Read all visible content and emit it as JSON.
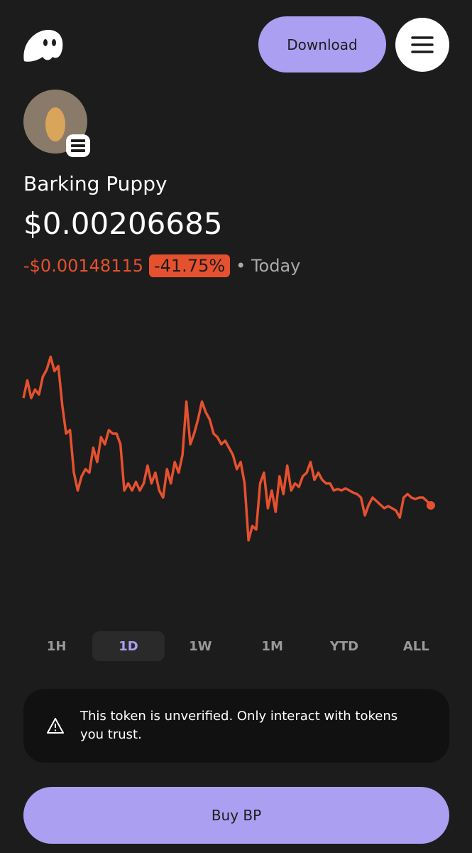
{
  "header": {
    "download": "Download"
  },
  "token": {
    "name": "Barking Puppy",
    "price": "$0.00206685",
    "change": "-$0.00148115",
    "change_percent": "-41.75%",
    "period": "Today"
  },
  "chart_data": {
    "type": "line",
    "color": "#e5512f",
    "values": [
      0.003547,
      0.003792,
      0.003547,
      0.003664,
      0.003596,
      0.003841,
      0.003939,
      0.004115,
      0.003919,
      0.003988,
      0.003449,
      0.003057,
      0.003106,
      0.002518,
      0.002273,
      0.002469,
      0.002567,
      0.002518,
      0.002861,
      0.002665,
      0.003008,
      0.00291,
      0.003106,
      0.003057,
      0.003057,
      0.00291,
      0.002273,
      0.002371,
      0.002273,
      0.00239,
      0.002273,
      0.002371,
      0.002616,
      0.002371,
      0.002518,
      0.002273,
      0.002175,
      0.002567,
      0.002371,
      0.002665,
      0.002518,
      0.002763,
      0.003498,
      0.00291,
      0.003057,
      0.003253,
      0.003498,
      0.003351,
      0.003253,
      0.003057,
      0.003008,
      0.00291,
      0.002959,
      0.002861,
      0.002763,
      0.002567,
      0.002665,
      0.002371,
      0.001587,
      0.001783,
      0.001734,
      0.002371,
      0.002518,
      0.002028,
      0.002273,
      0.001979,
      0.002469,
      0.002224,
      0.002616,
      0.002273,
      0.002371,
      0.002322,
      0.002469,
      0.002518,
      0.002665,
      0.00242,
      0.002518,
      0.00242,
      0.002371,
      0.002371,
      0.002273,
      0.002292,
      0.002273,
      0.002302,
      0.002273,
      0.002243,
      0.002224,
      0.002175,
      0.00193,
      0.002077,
      0.002175,
      0.002126,
      0.002077,
      0.002028,
      0.002057,
      0.002028,
      0.001998,
      0.0019,
      0.002175,
      0.002224,
      0.002175,
      0.002155,
      0.002175,
      0.002175,
      0.002126,
      0.00206685
    ]
  },
  "tabs": {
    "items": [
      "1H",
      "1D",
      "1W",
      "1M",
      "YTD",
      "ALL"
    ],
    "active": 1
  },
  "warning": {
    "text": "This token is unverified. Only interact with tokens you trust."
  },
  "buy_button": {
    "label": "Buy BP"
  }
}
